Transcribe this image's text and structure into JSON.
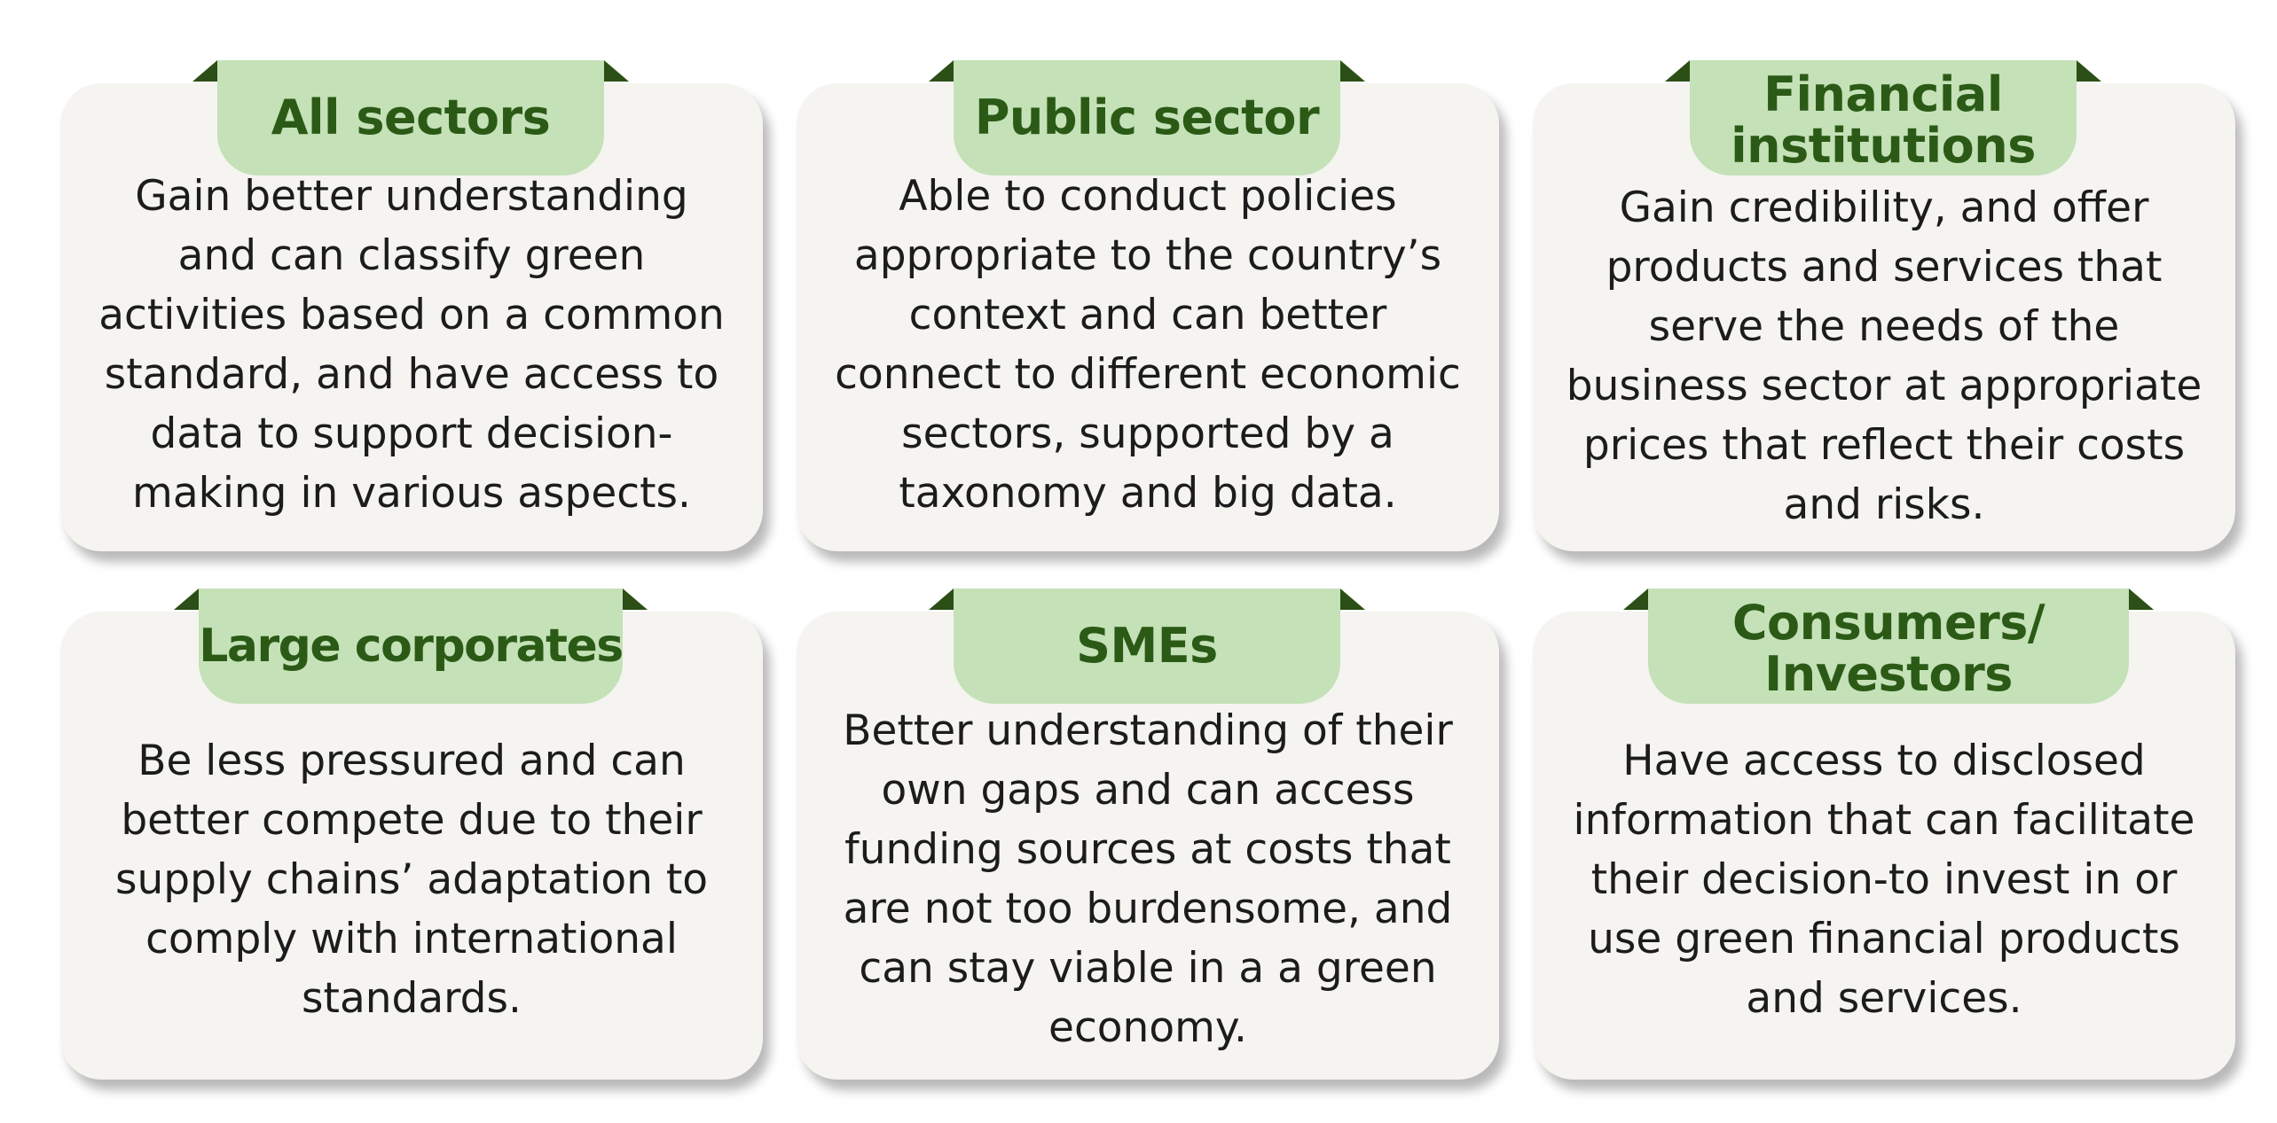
{
  "cards": [
    {
      "title": "All sectors",
      "text": "Gain better understanding and can classify green activities based on a common standard, and have access to data to support decision-making in various aspects."
    },
    {
      "title": "Public sector",
      "text": "Able to conduct policies appropriate to the country’s context and can better connect to different economic sectors, supported by a taxonomy and big data."
    },
    {
      "title": "Financial institutions",
      "text": "Gain credibility, and offer products and services that serve the needs of the business sector at appropriate prices that reflect their costs and risks."
    },
    {
      "title": "Large corporates",
      "text": "Be less pressured and can better compete due to their supply chains’ adaptation to comply with international standards."
    },
    {
      "title": "SMEs",
      "text": "Better understanding of their own gaps and can access funding sources at costs that are not too burdensome, and can stay viable in a a green economy."
    },
    {
      "title": "Consumers/ Investors",
      "text": "Have access to disclosed information that can facilitate their decision-to invest in or use green financial products and services."
    }
  ],
  "colors": {
    "card_background": "#f5f4f1",
    "tab_background": "#c4e1b7",
    "title_text": "#2b5a16",
    "fold": "#2b4f16",
    "body_text": "#1c1c1c"
  }
}
